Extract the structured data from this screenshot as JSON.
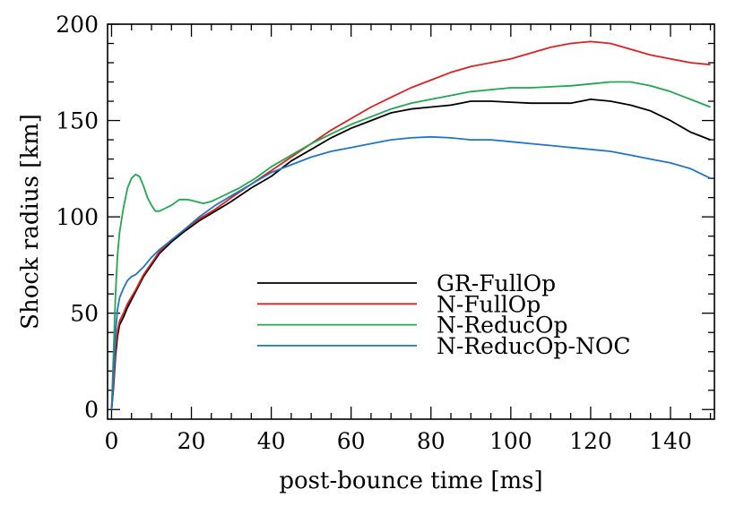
{
  "chart_data": {
    "type": "line",
    "title": "",
    "xlabel": "post-bounce time [ms]",
    "ylabel": "Shock radius [km]",
    "xlim": [
      -1,
      151
    ],
    "ylim": [
      -5,
      200
    ],
    "xticks": [
      0,
      20,
      40,
      60,
      80,
      100,
      120,
      140
    ],
    "yticks": [
      0,
      50,
      100,
      150,
      200
    ],
    "xminor_step": 5,
    "yminor_step": 10,
    "grid": false,
    "legend_position": "center-right",
    "series": [
      {
        "name": "GR-FullOp",
        "color": "#000000",
        "points": [
          [
            0,
            0
          ],
          [
            0.5,
            12
          ],
          [
            1,
            28
          ],
          [
            1.5,
            38
          ],
          [
            2,
            44
          ],
          [
            3,
            48
          ],
          [
            4,
            53
          ],
          [
            6,
            61
          ],
          [
            8,
            69
          ],
          [
            10,
            75
          ],
          [
            12,
            81
          ],
          [
            15,
            87
          ],
          [
            18,
            92
          ],
          [
            22,
            98
          ],
          [
            26,
            103
          ],
          [
            30,
            108
          ],
          [
            35,
            115
          ],
          [
            40,
            121
          ],
          [
            45,
            129
          ],
          [
            50,
            135
          ],
          [
            55,
            141
          ],
          [
            60,
            146
          ],
          [
            65,
            150
          ],
          [
            70,
            154
          ],
          [
            75,
            156
          ],
          [
            80,
            157
          ],
          [
            85,
            158
          ],
          [
            90,
            160
          ],
          [
            95,
            160
          ],
          [
            100,
            159.5
          ],
          [
            105,
            159
          ],
          [
            110,
            159
          ],
          [
            115,
            159
          ],
          [
            120,
            161
          ],
          [
            125,
            160
          ],
          [
            130,
            158
          ],
          [
            135,
            155
          ],
          [
            140,
            150
          ],
          [
            145,
            144
          ],
          [
            150,
            140
          ]
        ]
      },
      {
        "name": "N-FullOp",
        "color": "#e02020",
        "points": [
          [
            0,
            0
          ],
          [
            0.5,
            14
          ],
          [
            1,
            32
          ],
          [
            1.5,
            41
          ],
          [
            2,
            46
          ],
          [
            3,
            50
          ],
          [
            4,
            55
          ],
          [
            6,
            62
          ],
          [
            8,
            70
          ],
          [
            10,
            76
          ],
          [
            12,
            82
          ],
          [
            15,
            88
          ],
          [
            18,
            93
          ],
          [
            22,
            99
          ],
          [
            26,
            104
          ],
          [
            30,
            110
          ],
          [
            35,
            117
          ],
          [
            40,
            124
          ],
          [
            45,
            131
          ],
          [
            50,
            138
          ],
          [
            55,
            145
          ],
          [
            60,
            151
          ],
          [
            65,
            157
          ],
          [
            70,
            162
          ],
          [
            75,
            167
          ],
          [
            80,
            171
          ],
          [
            85,
            175
          ],
          [
            90,
            178
          ],
          [
            95,
            180
          ],
          [
            100,
            182
          ],
          [
            105,
            185
          ],
          [
            110,
            188
          ],
          [
            115,
            190
          ],
          [
            120,
            191
          ],
          [
            125,
            190
          ],
          [
            130,
            187
          ],
          [
            135,
            184
          ],
          [
            140,
            182
          ],
          [
            145,
            180
          ],
          [
            150,
            179
          ]
        ]
      },
      {
        "name": "N-ReducOp",
        "color": "#1fa84f",
        "points": [
          [
            0,
            0
          ],
          [
            0.5,
            30
          ],
          [
            1,
            60
          ],
          [
            1.5,
            80
          ],
          [
            2,
            92
          ],
          [
            3,
            105
          ],
          [
            4,
            115
          ],
          [
            5,
            120
          ],
          [
            6,
            122
          ],
          [
            7,
            121
          ],
          [
            8,
            116
          ],
          [
            9,
            110
          ],
          [
            10,
            106
          ],
          [
            11,
            103
          ],
          [
            12,
            103
          ],
          [
            13,
            104
          ],
          [
            15,
            106
          ],
          [
            17,
            109
          ],
          [
            19,
            109
          ],
          [
            21,
            108
          ],
          [
            23,
            107
          ],
          [
            25,
            108
          ],
          [
            28,
            111
          ],
          [
            32,
            115
          ],
          [
            36,
            120
          ],
          [
            40,
            126
          ],
          [
            45,
            132
          ],
          [
            50,
            138
          ],
          [
            55,
            143
          ],
          [
            60,
            148
          ],
          [
            65,
            152
          ],
          [
            70,
            156
          ],
          [
            75,
            159
          ],
          [
            80,
            161
          ],
          [
            85,
            163
          ],
          [
            90,
            165
          ],
          [
            95,
            166
          ],
          [
            100,
            167
          ],
          [
            105,
            167
          ],
          [
            110,
            167.5
          ],
          [
            115,
            168
          ],
          [
            120,
            169
          ],
          [
            125,
            170
          ],
          [
            130,
            170
          ],
          [
            135,
            168
          ],
          [
            140,
            165
          ],
          [
            145,
            161
          ],
          [
            150,
            157
          ]
        ]
      },
      {
        "name": "N-ReducOp-NOC",
        "color": "#1f77c4",
        "points": [
          [
            0,
            0
          ],
          [
            0.5,
            20
          ],
          [
            1,
            40
          ],
          [
            1.5,
            52
          ],
          [
            2,
            58
          ],
          [
            3,
            63
          ],
          [
            4,
            67
          ],
          [
            5,
            69
          ],
          [
            6,
            70
          ],
          [
            8,
            74
          ],
          [
            10,
            79
          ],
          [
            12,
            83
          ],
          [
            15,
            88
          ],
          [
            18,
            93
          ],
          [
            22,
            100
          ],
          [
            26,
            106
          ],
          [
            30,
            111
          ],
          [
            35,
            117
          ],
          [
            40,
            123
          ],
          [
            45,
            127
          ],
          [
            50,
            131
          ],
          [
            55,
            134
          ],
          [
            60,
            136
          ],
          [
            65,
            138
          ],
          [
            70,
            140
          ],
          [
            75,
            141
          ],
          [
            80,
            141.5
          ],
          [
            85,
            141
          ],
          [
            90,
            140
          ],
          [
            95,
            140
          ],
          [
            100,
            139
          ],
          [
            105,
            138
          ],
          [
            110,
            137
          ],
          [
            115,
            136
          ],
          [
            120,
            135
          ],
          [
            125,
            134
          ],
          [
            130,
            132
          ],
          [
            135,
            130
          ],
          [
            140,
            128
          ],
          [
            145,
            125
          ],
          [
            150,
            120
          ]
        ]
      }
    ]
  }
}
